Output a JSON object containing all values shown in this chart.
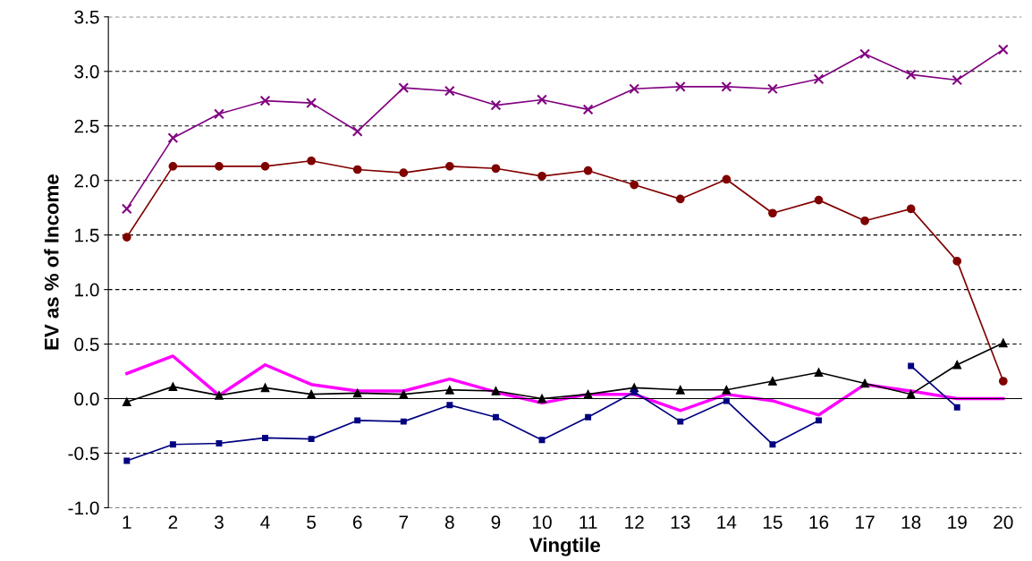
{
  "chart_data": {
    "type": "line",
    "xlabel": "Vingtile",
    "ylabel": "EV as % of Income",
    "categories": [
      "1",
      "2",
      "3",
      "4",
      "5",
      "6",
      "7",
      "8",
      "9",
      "10",
      "11",
      "12",
      "13",
      "14",
      "15",
      "16",
      "17",
      "18",
      "19",
      "20"
    ],
    "ylim": [
      -1.0,
      3.5
    ],
    "yticks": [
      {
        "value": -1.0,
        "label": "-1.0"
      },
      {
        "value": -0.5,
        "label": "-0.5"
      },
      {
        "value": 0.0,
        "label": "0.0"
      },
      {
        "value": 0.5,
        "label": "0.5"
      },
      {
        "value": 1.0,
        "label": "1.0"
      },
      {
        "value": 1.5,
        "label": "1.5"
      },
      {
        "value": 2.0,
        "label": "2.0"
      },
      {
        "value": 2.5,
        "label": "2.5"
      },
      {
        "value": 3.0,
        "label": "3.0"
      },
      {
        "value": 3.5,
        "label": "3.5"
      }
    ],
    "grid": "y",
    "legend": false,
    "series": [
      {
        "color": "#800080",
        "marker": "cross",
        "values": [
          1.74,
          2.39,
          2.61,
          2.73,
          2.71,
          2.45,
          2.85,
          2.82,
          2.69,
          2.74,
          2.65,
          2.84,
          2.86,
          2.86,
          2.84,
          2.93,
          3.16,
          2.97,
          2.92,
          3.2
        ]
      },
      {
        "color": "#800000",
        "marker": "circle",
        "values": [
          1.48,
          2.13,
          2.13,
          2.13,
          2.18,
          2.1,
          2.07,
          2.13,
          2.11,
          2.04,
          2.09,
          1.96,
          1.83,
          2.01,
          1.7,
          1.82,
          1.63,
          1.74,
          1.26,
          0.16
        ]
      },
      {
        "color": "#000000",
        "marker": "triangle",
        "values": [
          -0.03,
          0.11,
          0.03,
          0.1,
          0.04,
          0.05,
          0.04,
          0.08,
          0.07,
          0.0,
          0.04,
          0.1,
          0.08,
          0.08,
          0.16,
          0.24,
          0.14,
          0.04,
          0.31,
          0.51
        ]
      },
      {
        "color": "#ff00ff",
        "marker": "none",
        "values": [
          0.23,
          0.39,
          0.03,
          0.31,
          0.13,
          0.07,
          0.07,
          0.18,
          0.06,
          -0.04,
          0.04,
          0.04,
          -0.11,
          0.04,
          -0.02,
          -0.15,
          0.13,
          0.07,
          0.0,
          0.0
        ]
      },
      {
        "color": "#000080",
        "marker": "square",
        "values": [
          -0.57,
          -0.42,
          -0.41,
          -0.36,
          -0.37,
          -0.2,
          -0.21,
          -0.06,
          -0.17,
          -0.38,
          -0.17,
          0.06,
          -0.21,
          -0.02,
          -0.42,
          -0.2,
          null,
          0.3,
          -0.08,
          null
        ]
      }
    ]
  }
}
